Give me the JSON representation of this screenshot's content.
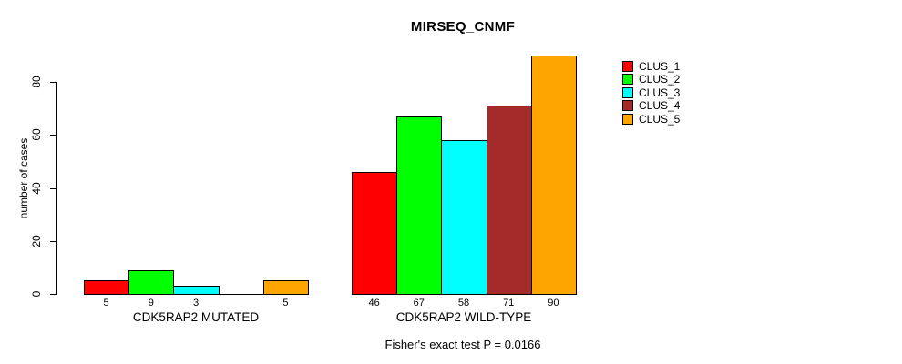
{
  "chart_data": {
    "type": "bar",
    "title": "MIRSEQ_CNMF",
    "xlabel": "",
    "ylabel": "number of cases",
    "ylim": [
      0,
      90
    ],
    "yticks": [
      0,
      20,
      40,
      60,
      80
    ],
    "grid": false,
    "legend_position": "top-right",
    "categories": [
      "CDK5RAP2 MUTATED",
      "CDK5RAP2 WILD-TYPE"
    ],
    "series": [
      {
        "name": "CLUS_1",
        "color": "#FF0000",
        "values": [
          5,
          46
        ]
      },
      {
        "name": "CLUS_2",
        "color": "#00FF00",
        "values": [
          9,
          67
        ]
      },
      {
        "name": "CLUS_3",
        "color": "#00FFFF",
        "values": [
          3,
          58
        ]
      },
      {
        "name": "CLUS_4",
        "color": "#A52A2A",
        "values": [
          0,
          71
        ]
      },
      {
        "name": "CLUS_5",
        "color": "#FFA500",
        "values": [
          5,
          90
        ]
      }
    ],
    "bar_value_labels_shown": true,
    "zero_value_labels_hidden": true,
    "annotation": "Fisher's exact test P = 0.0166"
  }
}
